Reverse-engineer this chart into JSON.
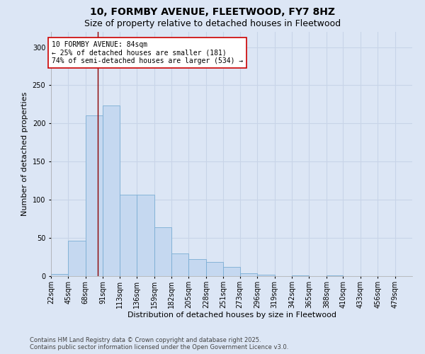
{
  "title_line1": "10, FORMBY AVENUE, FLEETWOOD, FY7 8HZ",
  "title_line2": "Size of property relative to detached houses in Fleetwood",
  "xlabel": "Distribution of detached houses by size in Fleetwood",
  "ylabel": "Number of detached properties",
  "bar_color": "#c5d8f0",
  "bar_edge_color": "#7aadd4",
  "bg_color": "#dce6f5",
  "grid_color": "#c8d4e8",
  "annotation_text": "10 FORMBY AVENUE: 84sqm\n← 25% of detached houses are smaller (181)\n74% of semi-detached houses are larger (534) →",
  "redline_x": 84,
  "categories": [
    "22sqm",
    "45sqm",
    "68sqm",
    "91sqm",
    "113sqm",
    "136sqm",
    "159sqm",
    "182sqm",
    "205sqm",
    "228sqm",
    "251sqm",
    "273sqm",
    "296sqm",
    "319sqm",
    "342sqm",
    "365sqm",
    "388sqm",
    "410sqm",
    "433sqm",
    "456sqm",
    "479sqm"
  ],
  "bin_edges": [
    22,
    45,
    68,
    91,
    113,
    136,
    159,
    182,
    205,
    228,
    251,
    273,
    296,
    319,
    342,
    365,
    388,
    410,
    433,
    456,
    479
  ],
  "values": [
    3,
    46,
    211,
    224,
    107,
    107,
    64,
    30,
    22,
    19,
    12,
    4,
    2,
    0,
    1,
    0,
    1,
    0,
    0,
    0,
    0
  ],
  "ylim": [
    0,
    320
  ],
  "yticks": [
    0,
    50,
    100,
    150,
    200,
    250,
    300
  ],
  "footnote": "Contains HM Land Registry data © Crown copyright and database right 2025.\nContains public sector information licensed under the Open Government Licence v3.0.",
  "title_fontsize": 10,
  "subtitle_fontsize": 9,
  "annotation_fontsize": 7,
  "footnote_fontsize": 6,
  "axis_label_fontsize": 8,
  "tick_fontsize": 7
}
